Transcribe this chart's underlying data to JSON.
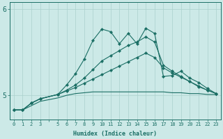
{
  "xlabel": "Humidex (Indice chaleur)",
  "bg_color": "#cce9e7",
  "line_color": "#1a6e64",
  "grid_color": "#aad0cc",
  "x_values": [
    0,
    1,
    2,
    3,
    5,
    6,
    7,
    8,
    9,
    10,
    11,
    12,
    13,
    14,
    15,
    16,
    17,
    18,
    19,
    20,
    21,
    22,
    23
  ],
  "line_wiggly": [
    4.83,
    4.83,
    4.91,
    4.96,
    5.01,
    5.12,
    5.25,
    5.42,
    5.64,
    5.77,
    5.74,
    5.6,
    5.72,
    5.6,
    5.78,
    5.72,
    5.22,
    5.23,
    5.28,
    5.2,
    5.15,
    5.08,
    5.02
  ],
  "line_mid_high": [
    4.83,
    4.83,
    4.91,
    4.96,
    5.01,
    5.06,
    5.12,
    5.2,
    5.3,
    5.4,
    5.46,
    5.52,
    5.58,
    5.62,
    5.68,
    5.62,
    5.35,
    5.28,
    5.22,
    5.16,
    5.1,
    5.06,
    5.02
  ],
  "line_mid_low": [
    4.83,
    4.83,
    4.91,
    4.96,
    5.01,
    5.05,
    5.09,
    5.14,
    5.19,
    5.24,
    5.29,
    5.34,
    5.39,
    5.44,
    5.49,
    5.44,
    5.32,
    5.26,
    5.21,
    5.16,
    5.11,
    5.06,
    5.02
  ],
  "line_flat": [
    4.83,
    4.83,
    4.88,
    4.93,
    4.97,
    5.0,
    5.02,
    5.03,
    5.04,
    5.04,
    5.04,
    5.04,
    5.04,
    5.04,
    5.04,
    5.04,
    5.04,
    5.03,
    5.03,
    5.02,
    5.02,
    5.01,
    5.01
  ],
  "ylim": [
    4.72,
    6.08
  ],
  "yticks": [
    5,
    6
  ]
}
